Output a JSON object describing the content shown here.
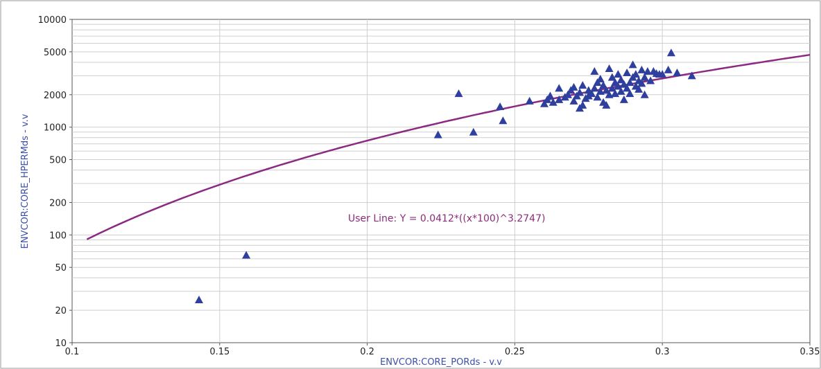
{
  "chart_data": {
    "type": "scatter",
    "xlabel": "ENVCOR:CORE_PORds - v.v",
    "ylabel": "ENVCOR:CORE_HPERMds - v.v",
    "xlim": [
      0.1,
      0.35
    ],
    "ylim": [
      10,
      10000
    ],
    "y_scale": "log",
    "grid": true,
    "x_ticks": [
      "0.1",
      "0.15",
      "0.2",
      "0.25",
      "0.3",
      "0.35"
    ],
    "y_ticks": [
      "10",
      "20",
      "50",
      "100",
      "200",
      "500",
      "1000",
      "2000",
      "5000",
      "10000"
    ],
    "point_color": "#2f3f9e",
    "line_color": "#8b2a83",
    "points": [
      [
        0.143,
        25
      ],
      [
        0.159,
        65
      ],
      [
        0.224,
        850
      ],
      [
        0.231,
        2050
      ],
      [
        0.236,
        900
      ],
      [
        0.245,
        1550
      ],
      [
        0.246,
        1150
      ],
      [
        0.255,
        1750
      ],
      [
        0.26,
        1650
      ],
      [
        0.261,
        1800
      ],
      [
        0.262,
        1950
      ],
      [
        0.263,
        1700
      ],
      [
        0.265,
        1800
      ],
      [
        0.265,
        2300
      ],
      [
        0.267,
        1900
      ],
      [
        0.268,
        2000
      ],
      [
        0.269,
        2200
      ],
      [
        0.27,
        1750
      ],
      [
        0.27,
        2350
      ],
      [
        0.271,
        1950
      ],
      [
        0.272,
        1500
      ],
      [
        0.272,
        2100
      ],
      [
        0.273,
        1600
      ],
      [
        0.273,
        2450
      ],
      [
        0.274,
        1850
      ],
      [
        0.275,
        2200
      ],
      [
        0.275,
        1950
      ],
      [
        0.276,
        2050
      ],
      [
        0.277,
        3300
      ],
      [
        0.277,
        2300
      ],
      [
        0.278,
        1900
      ],
      [
        0.278,
        2600
      ],
      [
        0.279,
        2150
      ],
      [
        0.279,
        2800
      ],
      [
        0.28,
        1700
      ],
      [
        0.28,
        2450
      ],
      [
        0.281,
        1600
      ],
      [
        0.281,
        2200
      ],
      [
        0.282,
        2000
      ],
      [
        0.282,
        3500
      ],
      [
        0.283,
        2900
      ],
      [
        0.283,
        2300
      ],
      [
        0.284,
        2600
      ],
      [
        0.284,
        2050
      ],
      [
        0.285,
        3100
      ],
      [
        0.285,
        2400
      ],
      [
        0.286,
        2150
      ],
      [
        0.286,
        2750
      ],
      [
        0.287,
        1800
      ],
      [
        0.287,
        2500
      ],
      [
        0.288,
        3200
      ],
      [
        0.288,
        2300
      ],
      [
        0.289,
        2600
      ],
      [
        0.289,
        2050
      ],
      [
        0.29,
        3800
      ],
      [
        0.29,
        2900
      ],
      [
        0.291,
        2400
      ],
      [
        0.291,
        3100
      ],
      [
        0.292,
        2250
      ],
      [
        0.292,
        2700
      ],
      [
        0.293,
        3400
      ],
      [
        0.293,
        2550
      ],
      [
        0.294,
        2900
      ],
      [
        0.294,
        2000
      ],
      [
        0.295,
        3300
      ],
      [
        0.296,
        2700
      ],
      [
        0.297,
        3300
      ],
      [
        0.298,
        3150
      ],
      [
        0.299,
        3100
      ],
      [
        0.3,
        3100
      ],
      [
        0.302,
        3400
      ],
      [
        0.303,
        4900
      ],
      [
        0.305,
        3200
      ],
      [
        0.31,
        3000
      ]
    ],
    "series": [
      {
        "name": "User Line",
        "formula": "Y = 0.0412*((x*100)^3.2747)",
        "x_range": [
          0.105,
          0.35
        ]
      }
    ],
    "annotation": "User Line: Y = 0.0412*((x*100)^3.2747)"
  }
}
